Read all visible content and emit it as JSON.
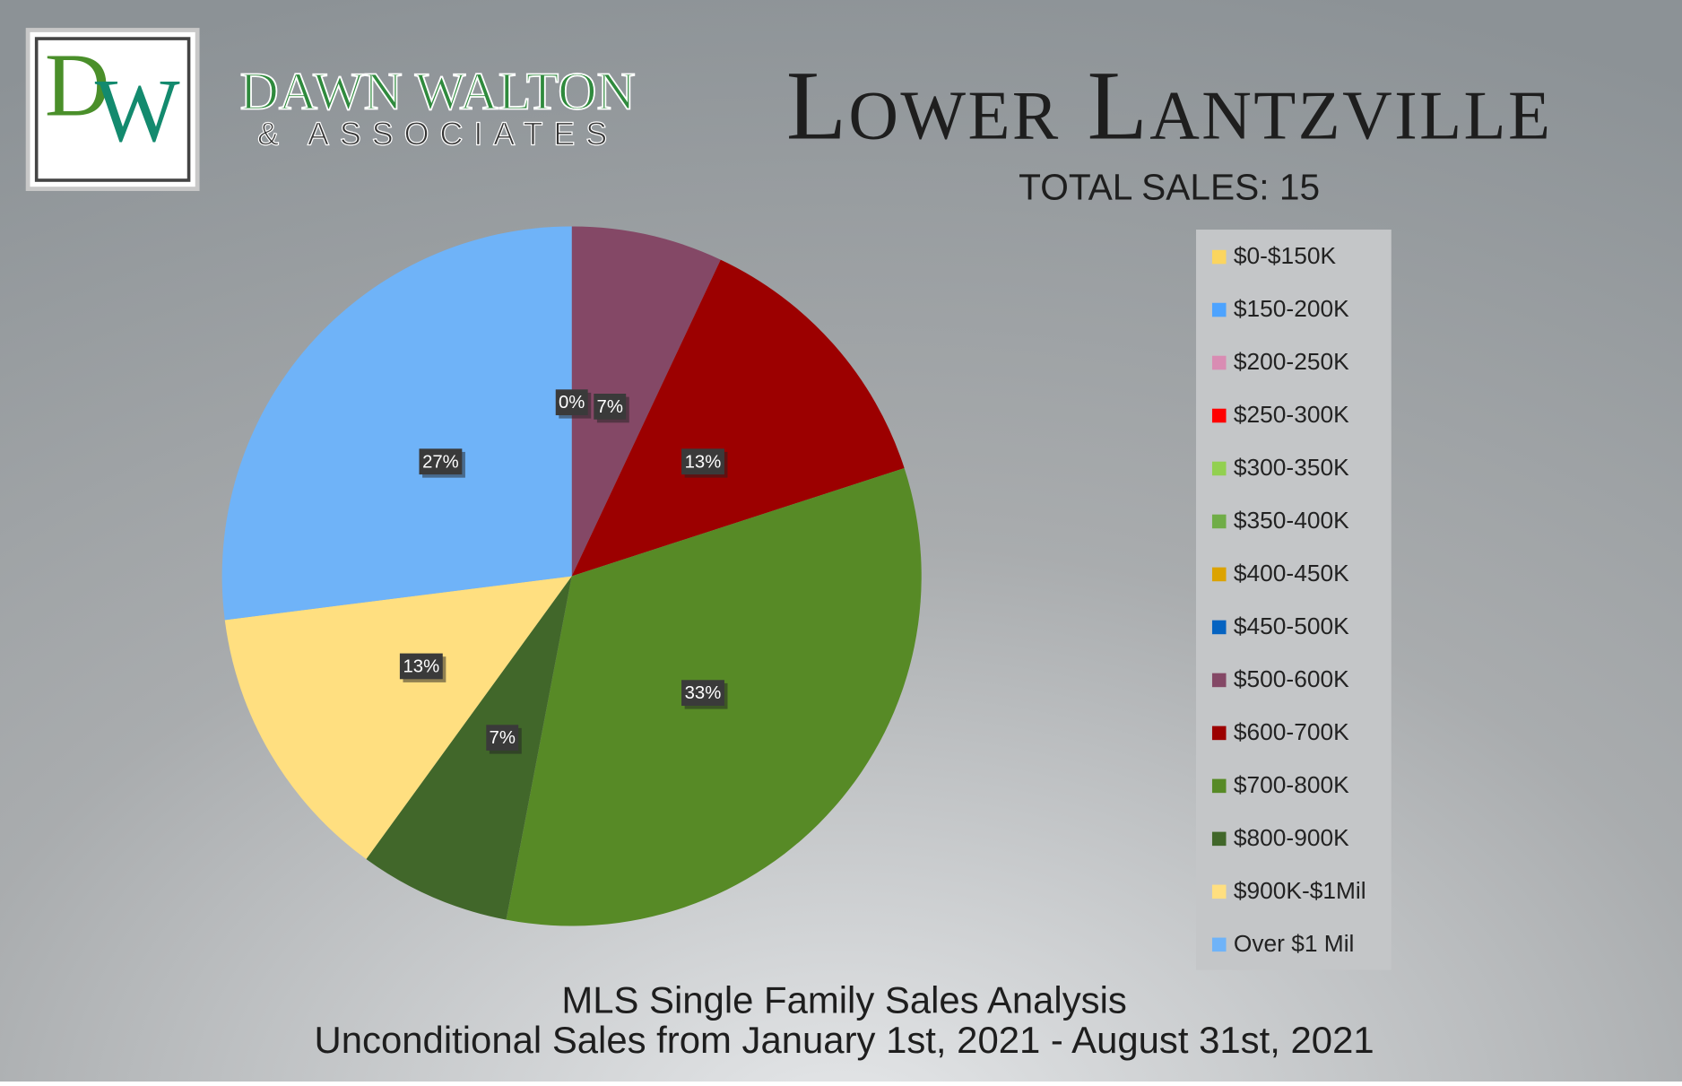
{
  "logo": {
    "letters": [
      "D",
      "W"
    ],
    "name": "DAWN WALTON",
    "tagline": "& ASSOCIATES"
  },
  "chart_data": {
    "type": "pie",
    "title": "Lower Lantzville",
    "total": "TOTAL SALES: 15",
    "subtitle": [
      "MLS Single Family Sales Analysis",
      "Unconditional Sales from January 1st, 2021 - August 31st, 2021"
    ],
    "categories": [
      "$0-$150K",
      "$150-200K",
      "$200-250K",
      "$250-300K",
      "$300-350K",
      "$350-400K",
      "$400-450K",
      "$450-500K",
      "$500-600K",
      "$600-700K",
      "$700-800K",
      "$800-900K",
      "$900K-$1Mil",
      "Over $1 Mil"
    ],
    "values": [
      0,
      0,
      0,
      0,
      0,
      0,
      0,
      0,
      7,
      13,
      33,
      7,
      13,
      27
    ],
    "value_labels": [
      "0%",
      null,
      null,
      null,
      null,
      null,
      null,
      null,
      "7%",
      "13%",
      "33%",
      "7%",
      "13%",
      "27%"
    ],
    "colors": [
      "#fbd55f",
      "#4da3ff",
      "#d98cb3",
      "#ff0000",
      "#92d050",
      "#70ad47",
      "#dca300",
      "#0563c1",
      "#844866",
      "#9c0000",
      "#578a26",
      "#41672a",
      "#ffdf80",
      "#6fb3f8"
    ],
    "legend": "right"
  }
}
